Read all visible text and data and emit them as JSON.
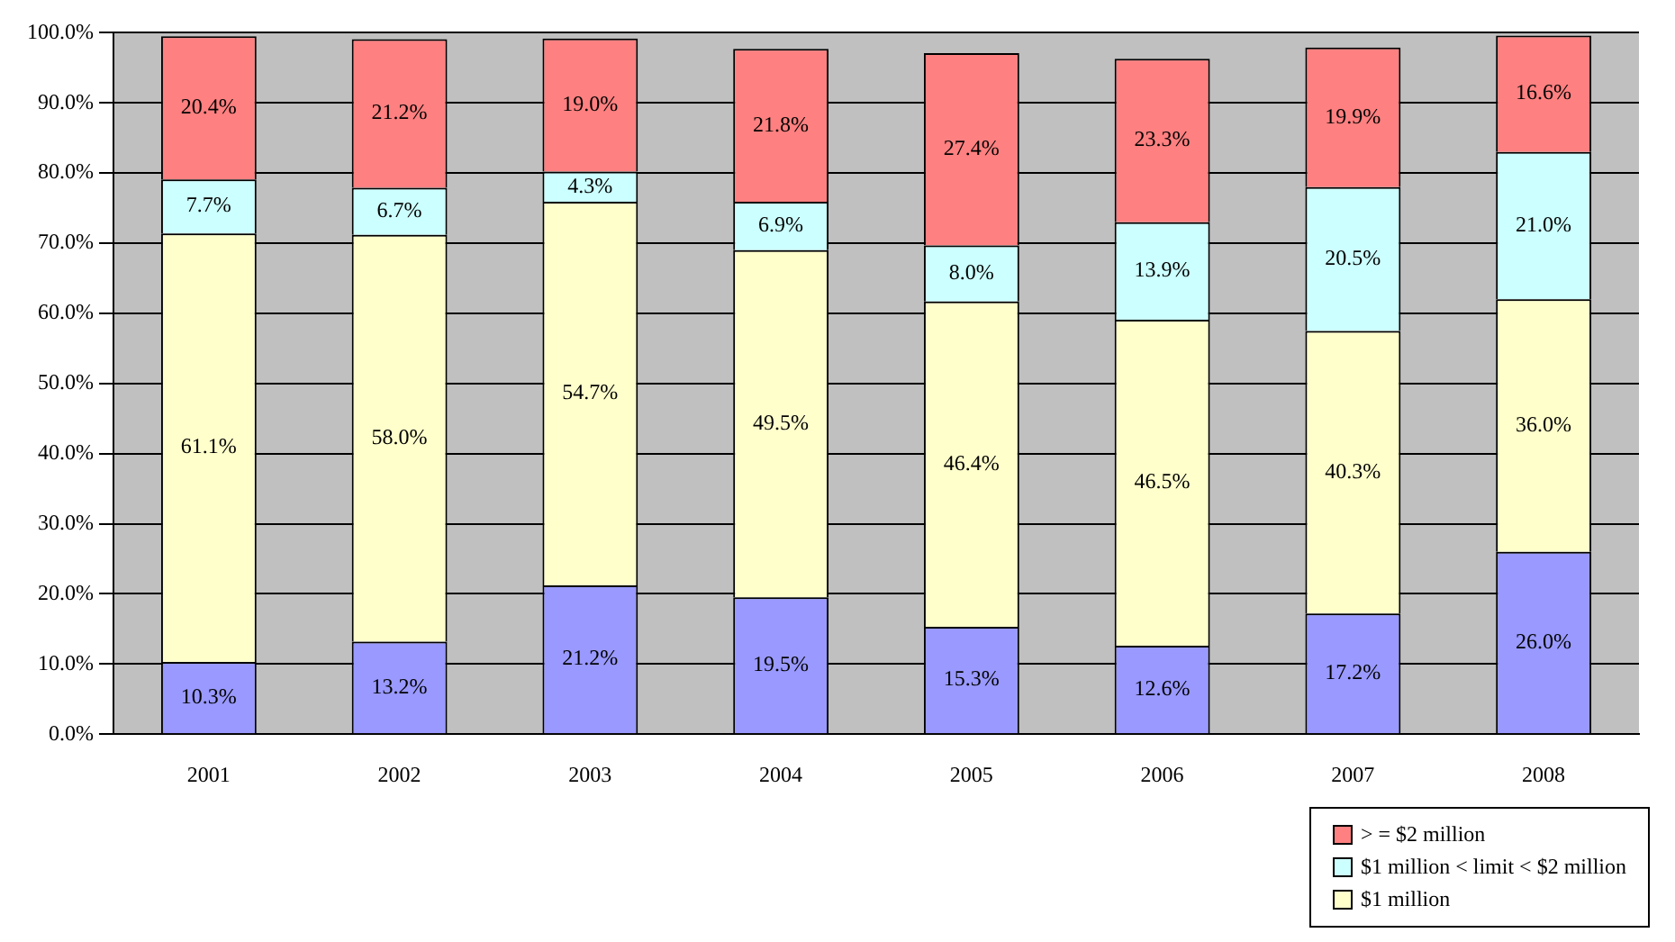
{
  "chart_data": {
    "type": "bar",
    "stacked": true,
    "categories": [
      "2001",
      "2002",
      "2003",
      "2004",
      "2005",
      "2006",
      "2007",
      "2008"
    ],
    "series": [
      {
        "color": "#9999ff",
        "values": [
          10.3,
          13.2,
          21.2,
          19.5,
          15.3,
          12.6,
          17.2,
          26.0
        ],
        "value_labels": [
          "10.3%",
          "13.2%",
          "21.2%",
          "19.5%",
          "15.3%",
          "12.6%",
          "17.2%",
          "26.0%"
        ]
      },
      {
        "name": "$1 million",
        "color": "#ffffcc",
        "values": [
          61.1,
          58.0,
          54.7,
          49.5,
          46.4,
          46.5,
          40.3,
          36.0
        ],
        "value_labels": [
          "61.1%",
          "58.0%",
          "54.7%",
          "49.5%",
          "46.4%",
          "46.5%",
          "40.3%",
          "36.0%"
        ]
      },
      {
        "name": "$1 million < limit < $2 million",
        "color": "#ccffff",
        "values": [
          7.7,
          6.7,
          4.3,
          6.9,
          8.0,
          13.9,
          20.5,
          21.0
        ],
        "value_labels": [
          "7.7%",
          "6.7%",
          "4.3%",
          "6.9%",
          "8.0%",
          "13.9%",
          "20.5%",
          "21.0%"
        ]
      },
      {
        "name": "> = $2 million",
        "color": "#ff8080",
        "values": [
          20.4,
          21.2,
          19.0,
          21.8,
          27.4,
          23.3,
          19.9,
          16.6
        ],
        "value_labels": [
          "20.4%",
          "21.2%",
          "19.0%",
          "21.8%",
          "27.4%",
          "23.3%",
          "19.9%",
          "16.6%"
        ]
      }
    ],
    "ylim": [
      0,
      100
    ],
    "yticks": [
      {
        "value": 0,
        "label": "0.0%"
      },
      {
        "value": 10,
        "label": "10.0%"
      },
      {
        "value": 20,
        "label": "20.0%"
      },
      {
        "value": 30,
        "label": "30.0%"
      },
      {
        "value": 40,
        "label": "40.0%"
      },
      {
        "value": 50,
        "label": "50.0%"
      },
      {
        "value": 60,
        "label": "60.0%"
      },
      {
        "value": 70,
        "label": "70.0%"
      },
      {
        "value": 80,
        "label": "80.0%"
      },
      {
        "value": 90,
        "label": "90.0%"
      },
      {
        "value": 100,
        "label": "100.0%"
      }
    ],
    "grid": "y",
    "legend": "bottom right"
  }
}
